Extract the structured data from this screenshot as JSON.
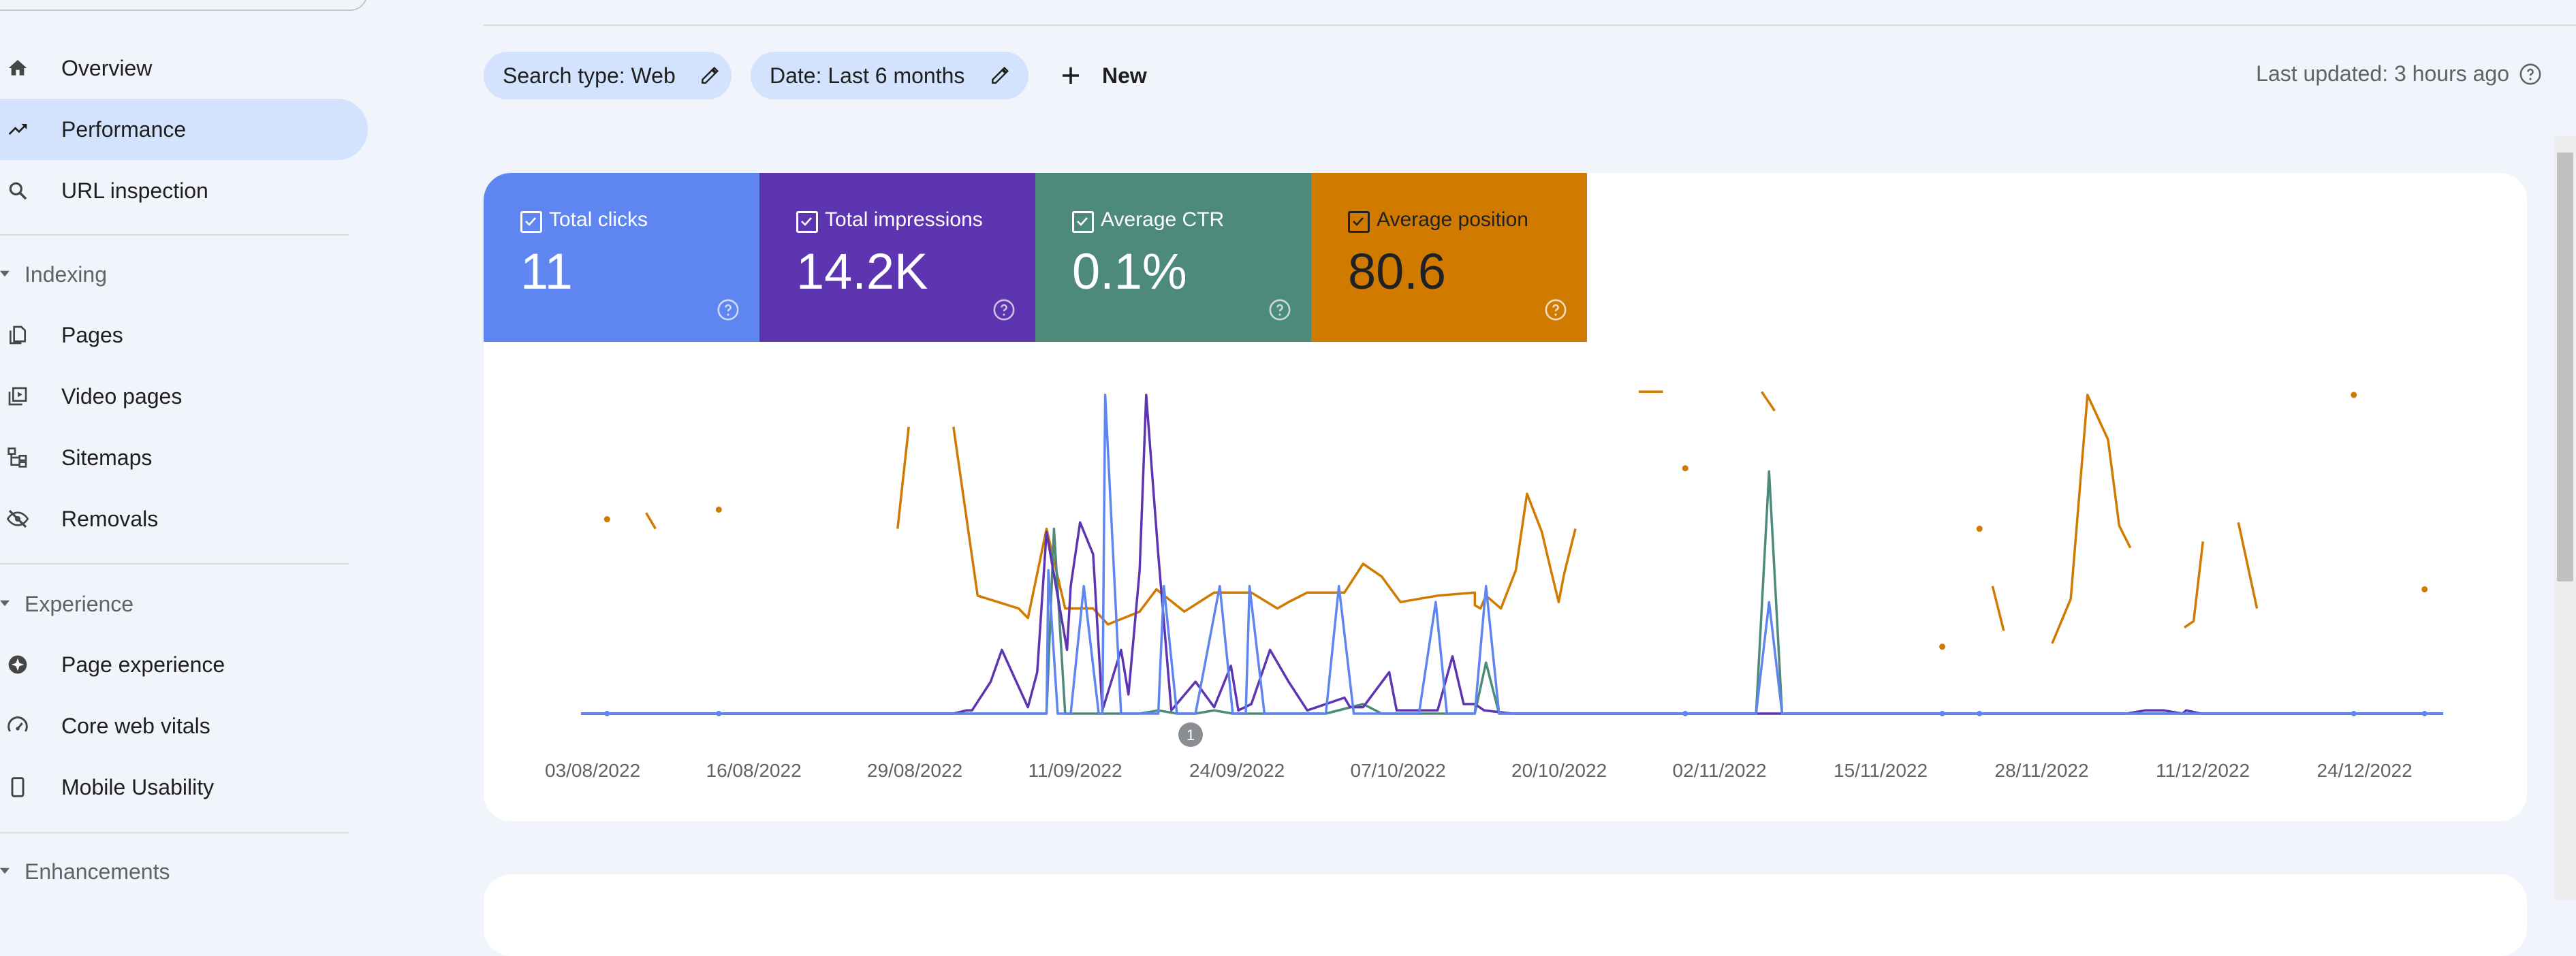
{
  "sidebar": {
    "items": [
      {
        "label": "Overview",
        "icon": "home-icon"
      },
      {
        "label": "Performance",
        "icon": "trending-up-icon",
        "active": true
      },
      {
        "label": "URL inspection",
        "icon": "search-icon"
      }
    ],
    "sections": [
      {
        "title": "Indexing",
        "items": [
          {
            "label": "Pages",
            "icon": "pages-icon"
          },
          {
            "label": "Video pages",
            "icon": "video-pages-icon"
          },
          {
            "label": "Sitemaps",
            "icon": "sitemap-icon"
          },
          {
            "label": "Removals",
            "icon": "eye-off-icon"
          }
        ]
      },
      {
        "title": "Experience",
        "items": [
          {
            "label": "Page experience",
            "icon": "page-experience-icon"
          },
          {
            "label": "Core web vitals",
            "icon": "gauge-icon"
          },
          {
            "label": "Mobile Usability",
            "icon": "smartphone-icon"
          }
        ]
      },
      {
        "title": "Enhancements",
        "items": []
      }
    ]
  },
  "filters": {
    "chips": [
      {
        "label": "Search type: Web"
      },
      {
        "label": "Date: Last 6 months"
      }
    ],
    "new_label": "New",
    "last_updated": "Last updated: 3 hours ago"
  },
  "metrics": [
    {
      "label": "Total clicks",
      "value": "11",
      "color": "#5f86f0",
      "checked": true
    },
    {
      "label": "Total impressions",
      "value": "14.2K",
      "color": "#5e35b1",
      "checked": true
    },
    {
      "label": "Average CTR",
      "value": "0.1%",
      "color": "#4e8a7c",
      "checked": true
    },
    {
      "label": "Average position",
      "value": "80.6",
      "color": "#d17a00",
      "checked": true
    }
  ],
  "chart_data": {
    "type": "line",
    "x_tick_labels": [
      "03/08/2022",
      "16/08/2022",
      "29/08/2022",
      "11/09/2022",
      "24/09/2022",
      "07/10/2022",
      "20/10/2022",
      "02/11/2022",
      "15/11/2022",
      "28/11/2022",
      "11/12/2022",
      "24/12/2022"
    ],
    "annotation_marker": "1",
    "series": [
      {
        "name": "Total clicks",
        "color": "#5f86f0",
        "points": [
          [
            0,
            0
          ],
          [
            0.06,
            0
          ],
          [
            0.12,
            0
          ],
          [
            0.2,
            0
          ],
          [
            0.25,
            0
          ],
          [
            0.251,
            0.45
          ],
          [
            0.256,
            0
          ],
          [
            0.263,
            0
          ],
          [
            0.27,
            0.4
          ],
          [
            0.278,
            0
          ],
          [
            0.28,
            0
          ],
          [
            0.2815,
            1
          ],
          [
            0.29,
            0
          ],
          [
            0.31,
            0
          ],
          [
            0.313,
            0.4
          ],
          [
            0.32,
            0
          ],
          [
            0.33,
            0
          ],
          [
            0.343,
            0.4
          ],
          [
            0.35,
            0
          ],
          [
            0.357,
            0
          ],
          [
            0.359,
            0.4
          ],
          [
            0.367,
            0
          ],
          [
            0.4,
            0
          ],
          [
            0.407,
            0.4
          ],
          [
            0.415,
            0
          ],
          [
            0.45,
            0
          ],
          [
            0.459,
            0.35
          ],
          [
            0.465,
            0
          ],
          [
            0.48,
            0
          ],
          [
            0.486,
            0.4
          ],
          [
            0.493,
            0
          ],
          [
            0.6,
            0
          ],
          [
            0.631,
            0
          ],
          [
            0.638,
            0.35
          ],
          [
            0.645,
            0
          ],
          [
            0.7,
            0
          ],
          [
            0.8,
            0
          ],
          [
            0.9,
            0
          ],
          [
            1,
            0
          ]
        ]
      },
      {
        "name": "Total impressions",
        "color": "#5e35b1",
        "points": [
          [
            0,
            0
          ],
          [
            0.2,
            0
          ],
          [
            0.207,
            0.01
          ],
          [
            0.21,
            0.01
          ],
          [
            0.22,
            0.1
          ],
          [
            0.226,
            0.2
          ],
          [
            0.233,
            0.11
          ],
          [
            0.24,
            0.02
          ],
          [
            0.245,
            0.13
          ],
          [
            0.25,
            0.57
          ],
          [
            0.261,
            0.2
          ],
          [
            0.263,
            0.4
          ],
          [
            0.268,
            0.6
          ],
          [
            0.275,
            0.5
          ],
          [
            0.28,
            0.01
          ],
          [
            0.29,
            0.2
          ],
          [
            0.294,
            0.06
          ],
          [
            0.3,
            0.45
          ],
          [
            0.3035,
            1
          ],
          [
            0.31,
            0.5
          ],
          [
            0.317,
            0.01
          ],
          [
            0.33,
            0.1
          ],
          [
            0.34,
            0.02
          ],
          [
            0.349,
            0.15
          ],
          [
            0.353,
            0.01
          ],
          [
            0.36,
            0.03
          ],
          [
            0.37,
            0.2
          ],
          [
            0.38,
            0.1
          ],
          [
            0.39,
            0.01
          ],
          [
            0.41,
            0.05
          ],
          [
            0.413,
            0.02
          ],
          [
            0.42,
            0.02
          ],
          [
            0.434,
            0.13
          ],
          [
            0.438,
            0.01
          ],
          [
            0.46,
            0.01
          ],
          [
            0.468,
            0.18
          ],
          [
            0.474,
            0.03
          ],
          [
            0.48,
            0.03
          ],
          [
            0.485,
            0.01
          ],
          [
            0.5,
            0
          ],
          [
            0.6,
            0
          ],
          [
            0.7,
            0
          ],
          [
            0.83,
            0
          ],
          [
            0.84,
            0.01
          ],
          [
            0.85,
            0.01
          ],
          [
            0.86,
            0
          ],
          [
            0.862,
            0.01
          ],
          [
            0.87,
            0
          ],
          [
            0.9,
            0
          ],
          [
            1,
            0
          ]
        ]
      },
      {
        "name": "Average CTR",
        "color": "#4e8a7c",
        "points": [
          [
            0,
            0
          ],
          [
            0.2,
            0
          ],
          [
            0.25,
            0
          ],
          [
            0.254,
            0.58
          ],
          [
            0.26,
            0
          ],
          [
            0.3,
            0
          ],
          [
            0.31,
            0.01
          ],
          [
            0.32,
            0
          ],
          [
            0.33,
            0
          ],
          [
            0.34,
            0.01
          ],
          [
            0.35,
            0
          ],
          [
            0.4,
            0
          ],
          [
            0.42,
            0.03
          ],
          [
            0.43,
            0
          ],
          [
            0.48,
            0
          ],
          [
            0.486,
            0.16
          ],
          [
            0.493,
            0
          ],
          [
            0.6,
            0
          ],
          [
            0.631,
            0
          ],
          [
            0.638,
            0.76
          ],
          [
            0.645,
            0
          ],
          [
            0.7,
            0
          ],
          [
            1,
            0
          ]
        ]
      },
      {
        "name": "Average position",
        "color": "#d17a00",
        "segments": [
          [
            [
              0.035,
              0.63
            ],
            [
              0.04,
              0.58
            ]
          ],
          [
            [
              0.17,
              0.58
            ],
            [
              0.176,
              0.9
            ]
          ],
          [
            [
              0.2,
              0.9
            ],
            [
              0.213,
              0.37
            ],
            [
              0.235,
              0.33
            ],
            [
              0.24,
              0.3
            ],
            [
              0.25,
              0.58
            ],
            [
              0.26,
              0.33
            ],
            [
              0.275,
              0.33
            ],
            [
              0.283,
              0.28
            ],
            [
              0.3,
              0.32
            ],
            [
              0.309,
              0.39
            ],
            [
              0.324,
              0.32
            ],
            [
              0.34,
              0.38
            ],
            [
              0.36,
              0.38
            ],
            [
              0.374,
              0.33
            ],
            [
              0.38,
              0.35
            ],
            [
              0.39,
              0.38
            ],
            [
              0.41,
              0.38
            ],
            [
              0.42,
              0.47
            ],
            [
              0.43,
              0.43
            ],
            [
              0.44,
              0.35
            ],
            [
              0.46,
              0.37
            ],
            [
              0.48,
              0.38
            ],
            [
              0.48,
              0.34
            ],
            [
              0.483,
              0.33
            ],
            [
              0.486,
              0.37
            ],
            [
              0.494,
              0.33
            ],
            [
              0.502,
              0.45
            ],
            [
              0.508,
              0.69
            ],
            [
              0.516,
              0.57
            ],
            [
              0.52,
              0.47
            ],
            [
              0.525,
              0.35
            ],
            [
              0.528,
              0.44
            ],
            [
              0.534,
              0.58
            ]
          ],
          [
            [
              0.568,
              1.01
            ],
            [
              0.581,
              1.01
            ]
          ],
          [
            [
              0.634,
              1.01
            ],
            [
              0.641,
              0.95
            ]
          ],
          [
            [
              0.758,
              0.4
            ],
            [
              0.764,
              0.26
            ]
          ],
          [
            [
              0.79,
              0.22
            ],
            [
              0.8,
              0.36
            ],
            [
              0.809,
              1.0
            ],
            [
              0.82,
              0.86
            ],
            [
              0.826,
              0.59
            ],
            [
              0.832,
              0.52
            ]
          ],
          [
            [
              0.861,
              0.27
            ],
            [
              0.866,
              0.29
            ],
            [
              0.871,
              0.54
            ]
          ],
          [
            [
              0.89,
              0.6
            ],
            [
              0.9,
              0.33
            ]
          ]
        ],
        "dots": [
          [
            0.014,
            0.61
          ],
          [
            0.074,
            0.64
          ],
          [
            0.593,
            0.77
          ],
          [
            0.731,
            0.21
          ],
          [
            0.751,
            0.58
          ],
          [
            0.952,
            1.0
          ],
          [
            0.99,
            0.39
          ]
        ]
      }
    ]
  }
}
